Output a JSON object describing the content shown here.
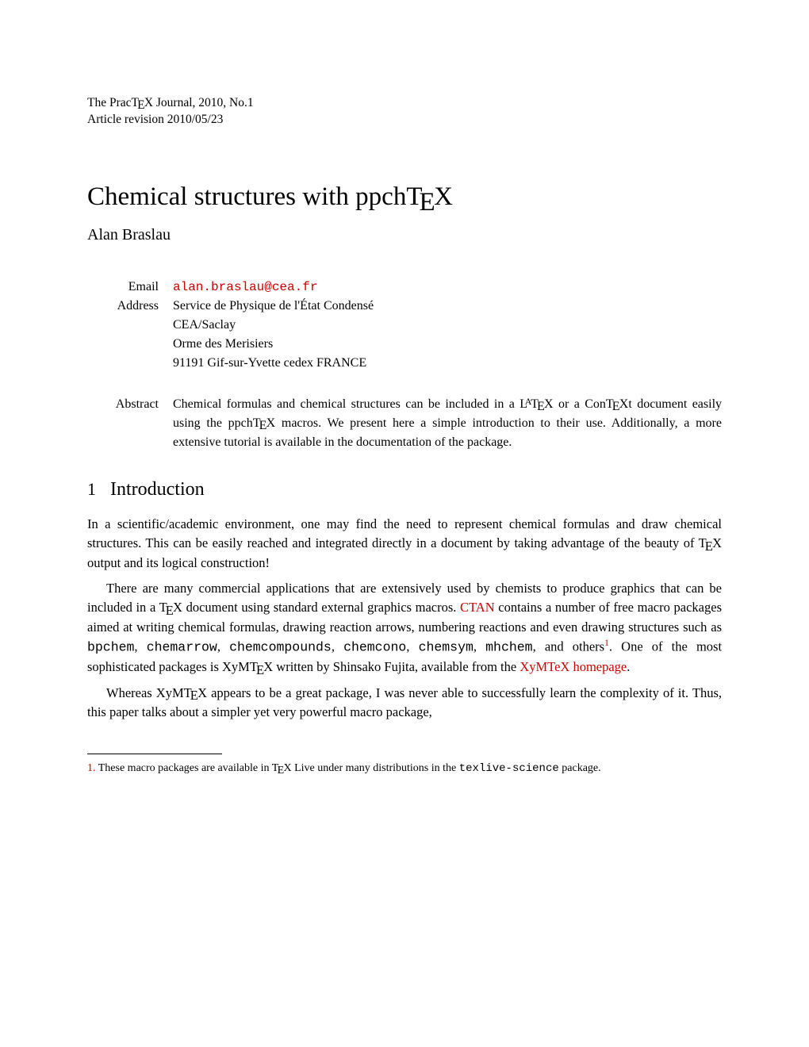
{
  "journal": {
    "line1_a": "The Prac",
    "line1_b": "X Journal, 2010, No.1",
    "line2": "Article revision 2010/05/23"
  },
  "title": {
    "before": "Chemical structures with ppch",
    "after": "X"
  },
  "author": "Alan Braslau",
  "meta": {
    "email_label": "Email",
    "email_value": "alan.braslau@cea.fr",
    "address_label": "Address",
    "address_line1": "Service de Physique de l'État Condensé",
    "address_line2": "CEA/Saclay",
    "address_line3": "Orme des Merisiers",
    "address_line4": "91191 Gif-sur-Yvette cedex FRANCE",
    "abstract_label": "Abstract",
    "abstract_a": "Chemical formulas and chemical structures can be included in a L",
    "abstract_b": "X or a Con",
    "abstract_c": "Xt document easily using the ppch",
    "abstract_d": "X macros. We present here a simple introduction to their use. Additionally, a more extensive tutorial is available in the documentation of the package."
  },
  "section": {
    "num": "1",
    "title": "Introduction"
  },
  "p1": {
    "a": "In a scientific/academic environment, one may find the need to represent chemical formulas and draw chemical structures. This can be easily reached and integrated directly in a document by taking advantage of the beauty of ",
    "b": "X output and its logical construction!"
  },
  "p2": {
    "a": "There are many commercial applications that are extensively used by chemists to produce graphics that can be included in a ",
    "b": "X document using standard external graphics macros. ",
    "ctan": "CTAN",
    "c": " contains a number of free macro packages aimed at writing chemical formulas, drawing reaction arrows, numbering reactions and even drawing structures such as ",
    "pkg1": "bpchem",
    "pkg2": "chemarrow",
    "pkg3": "chemcompounds",
    "pkg4": "chemcono",
    "pkg5": "chemsym",
    "pkg6": "mhchem",
    "d": ", and others",
    "fn": "1",
    "e": ".  One of the most sophisticated packages is XyM",
    "f": "X written by Shinsako Fujita, available from the ",
    "xymtex": "XyMTeX homepage",
    "g": "."
  },
  "p3": {
    "a": "Whereas XyM",
    "b": "X appears to be a great package, I was never able to successfully learn the complexity of it. Thus, this paper talks about a simpler yet very powerful macro package,"
  },
  "footnote": {
    "num": "1.",
    "a": " These macro packages are available in ",
    "b": "X Live under many distributions in the ",
    "pkg": "texlive-science",
    "c": " package."
  },
  "colors": {
    "link": "#cc0000",
    "text": "#000000",
    "background": "#ffffff"
  },
  "typography": {
    "body_fontsize_pt": 12,
    "title_fontsize_pt": 24,
    "section_fontsize_pt": 18,
    "footnote_fontsize_pt": 10
  }
}
